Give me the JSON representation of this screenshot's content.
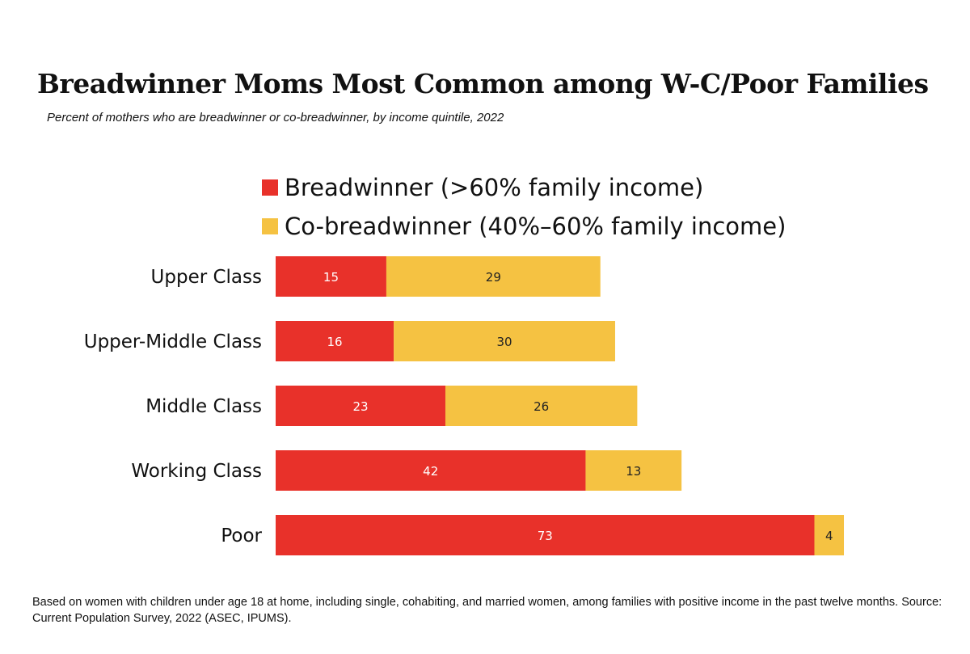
{
  "title": "Breadwinner Moms Most Common among W-C/Poor Families",
  "subtitle": "Percent of mothers who are breadwinner or co-breadwinner, by income quintile, 2022",
  "footnote": "Based on women with children under age 18 at home, including single, cohabiting, and married women, among families with positive income in the past twelve months. Source: Current Population Survey, 2022 (ASEC, IPUMS).",
  "colors": {
    "breadwinner": "#e8312a",
    "co_breadwinner": "#f5c242"
  },
  "chart_data": {
    "type": "bar",
    "orientation": "horizontal",
    "stacked": true,
    "categories": [
      "Upper Class",
      "Upper-Middle Class",
      "Middle Class",
      "Working Class",
      "Poor"
    ],
    "series": [
      {
        "name": "Breadwinner (>60% family income)",
        "values": [
          15,
          16,
          23,
          42,
          73
        ]
      },
      {
        "name": "Co-breadwinner (40%–60% family income)",
        "values": [
          29,
          30,
          26,
          13,
          4
        ]
      }
    ],
    "xlim": [
      0,
      80
    ],
    "grid": false,
    "legend_position": "top"
  }
}
